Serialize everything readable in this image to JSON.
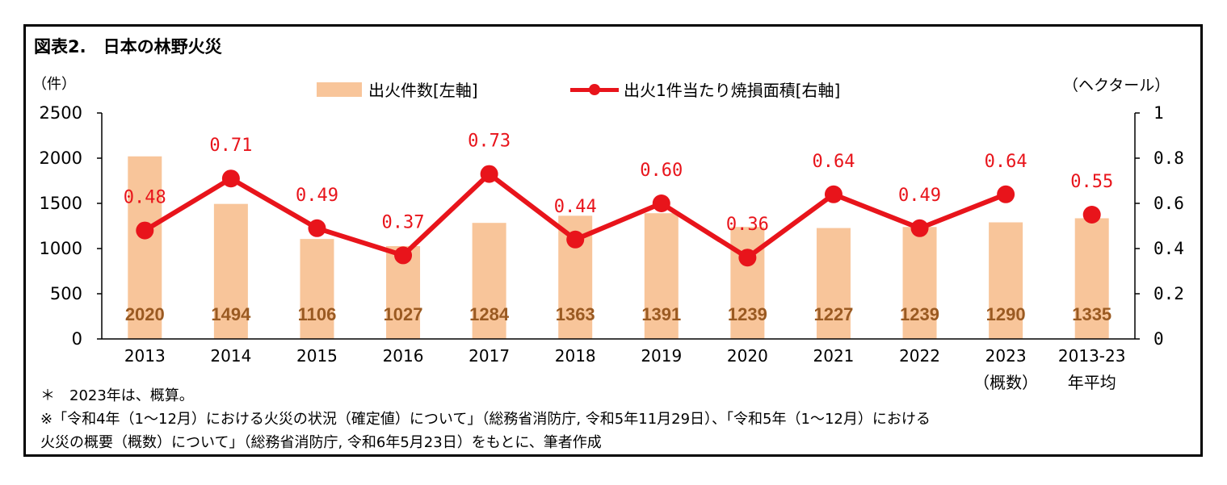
{
  "title": "図表2.　日本の林野火災",
  "unit_left": "（件）",
  "unit_right": "（ヘクタール）",
  "notes": [
    "＊　2023年は、概算。",
    "※「令和4年（1～12月）における火災の状況（確定値）について」（総務省消防庁, 令和5年11月29日）、「令和5年（1～12月）における",
    "火災の概要（概数）について」（総務省消防庁, 令和6年5月23日）をもとに、筆者作成"
  ],
  "chart_data": {
    "type": "bar+line",
    "categories": [
      [
        "2013"
      ],
      [
        "2014"
      ],
      [
        "2015"
      ],
      [
        "2016"
      ],
      [
        "2017"
      ],
      [
        "2018"
      ],
      [
        "2019"
      ],
      [
        "2020"
      ],
      [
        "2021"
      ],
      [
        "2022"
      ],
      [
        "2023",
        "（概数）"
      ],
      [
        "2013-23",
        "年平均"
      ]
    ],
    "series": [
      {
        "name": "出火件数[左軸]",
        "type": "bar",
        "axis": "left",
        "color": "#f8c59a",
        "label_color": "#9a5a22",
        "values": [
          2020,
          1494,
          1106,
          1027,
          1284,
          1363,
          1391,
          1239,
          1227,
          1239,
          1290,
          1335
        ],
        "labels": [
          "2020",
          "1494",
          "1106",
          "1027",
          "1284",
          "1363",
          "1391",
          "1239",
          "1227",
          "1239",
          "1290",
          "1335"
        ]
      },
      {
        "name": "出火1件当たり焼損面積[右軸]",
        "type": "line",
        "axis": "right",
        "color": "#e8141b",
        "values": [
          0.48,
          0.71,
          0.49,
          0.37,
          0.73,
          0.44,
          0.6,
          0.36,
          0.64,
          0.49,
          0.64,
          0.55
        ],
        "labels": [
          "0.48",
          "0.71",
          "0.49",
          "0.37",
          "0.73",
          "0.44",
          "0.60",
          "0.36",
          "0.64",
          "0.49",
          "0.64",
          "0.55"
        ]
      }
    ],
    "y_left": {
      "min": 0,
      "max": 2500,
      "ticks": [
        "0",
        "500",
        "1000",
        "1500",
        "2000",
        "2500"
      ]
    },
    "y_right": {
      "min": 0,
      "max": 1,
      "ticks": [
        "0",
        "0.2",
        "0.4",
        "0.6",
        "0.8",
        "1"
      ]
    },
    "legend_position": "top"
  }
}
